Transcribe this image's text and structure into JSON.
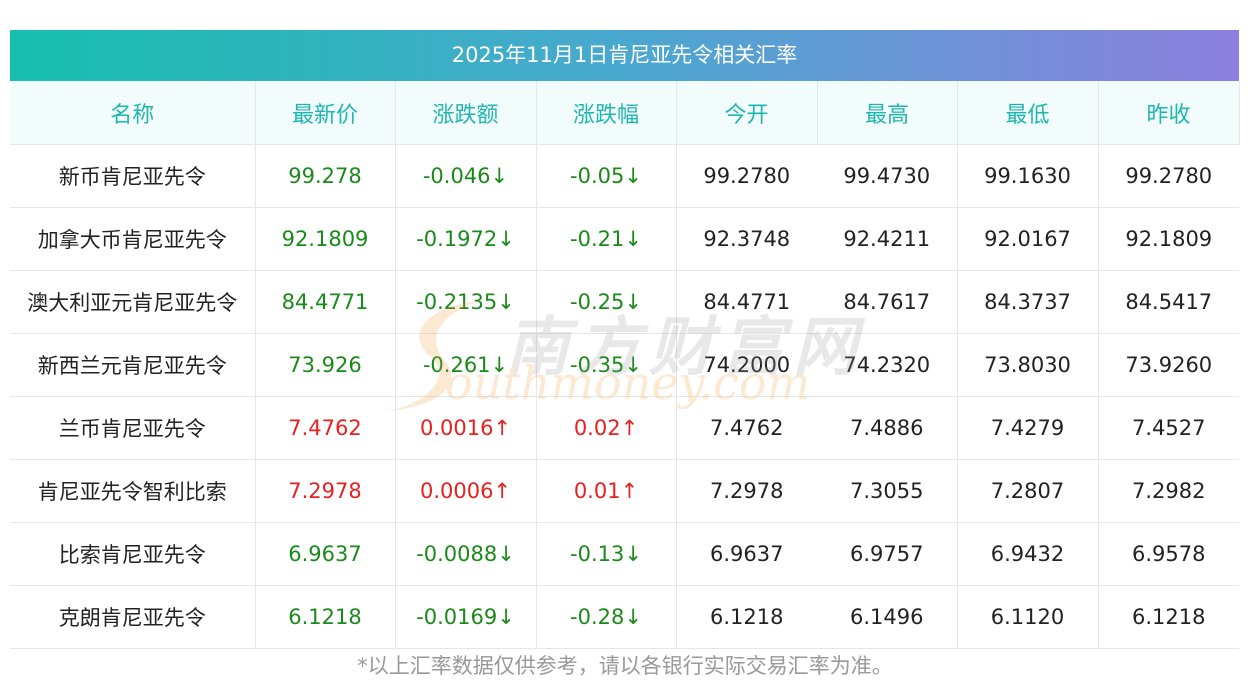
{
  "title": "2025年11月1日肯尼亚先令相关汇率",
  "headers": [
    "名称",
    "最新价",
    "涨跌额",
    "涨跌幅",
    "今开",
    "最高",
    "最低",
    "昨收"
  ],
  "rows": [
    {
      "name": "新币肯尼亚先令",
      "latest": "99.278",
      "change": "-0.046↓",
      "pct": "-0.05↓",
      "open": "99.2780",
      "high": "99.4730",
      "low": "99.1630",
      "prev": "99.2780",
      "dir": "down"
    },
    {
      "name": "加拿大币肯尼亚先令",
      "latest": "92.1809",
      "change": "-0.1972↓",
      "pct": "-0.21↓",
      "open": "92.3748",
      "high": "92.4211",
      "low": "92.0167",
      "prev": "92.1809",
      "dir": "down"
    },
    {
      "name": "澳大利亚元肯尼亚先令",
      "latest": "84.4771",
      "change": "-0.2135↓",
      "pct": "-0.25↓",
      "open": "84.4771",
      "high": "84.7617",
      "low": "84.3737",
      "prev": "84.5417",
      "dir": "down"
    },
    {
      "name": "新西兰元肯尼亚先令",
      "latest": "73.926",
      "change": "-0.261↓",
      "pct": "-0.35↓",
      "open": "74.2000",
      "high": "74.2320",
      "low": "73.8030",
      "prev": "73.9260",
      "dir": "down"
    },
    {
      "name": "兰币肯尼亚先令",
      "latest": "7.4762",
      "change": "0.0016↑",
      "pct": "0.02↑",
      "open": "7.4762",
      "high": "7.4886",
      "low": "7.4279",
      "prev": "7.4527",
      "dir": "up"
    },
    {
      "name": "肯尼亚先令智利比索",
      "latest": "7.2978",
      "change": "0.0006↑",
      "pct": "0.01↑",
      "open": "7.2978",
      "high": "7.3055",
      "low": "7.2807",
      "prev": "7.2982",
      "dir": "up"
    },
    {
      "name": "比索肯尼亚先令",
      "latest": "6.9637",
      "change": "-0.0088↓",
      "pct": "-0.13↓",
      "open": "6.9637",
      "high": "6.9757",
      "low": "6.9432",
      "prev": "6.9578",
      "dir": "down"
    },
    {
      "name": "克朗肯尼亚先令",
      "latest": "6.1218",
      "change": "-0.0169↓",
      "pct": "-0.28↓",
      "open": "6.1218",
      "high": "6.1496",
      "low": "6.1120",
      "prev": "6.1218",
      "dir": "down"
    }
  ],
  "footnote": "*以上汇率数据仅供参考，请以各银行实际交易汇率为准。",
  "watermark": {
    "cn": "南方财富网",
    "en": "outhmoney.com"
  },
  "colors": {
    "down": "#1a8a1a",
    "up": "#e8201f",
    "header_text": "#20b6b0",
    "gradient_start": "#17bfae",
    "gradient_end": "#8c7fdf"
  }
}
